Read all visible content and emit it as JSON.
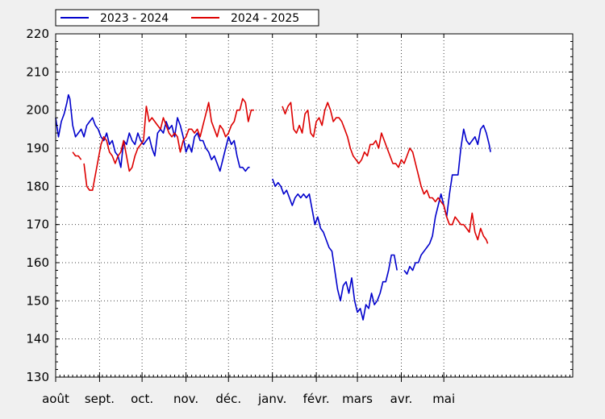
{
  "chart_data": {
    "type": "line",
    "title": "",
    "xlabel": "",
    "ylabel": "",
    "ylim": [
      130,
      220
    ],
    "yticks": [
      130,
      140,
      150,
      160,
      170,
      180,
      190,
      200,
      210,
      220
    ],
    "x_range": [
      0,
      365
    ],
    "month_ticks": [
      {
        "label": "août",
        "day": 0
      },
      {
        "label": "sept.",
        "day": 31
      },
      {
        "label": "oct.",
        "day": 61
      },
      {
        "label": "nov.",
        "day": 92
      },
      {
        "label": "déc.",
        "day": 122
      },
      {
        "label": "janv.",
        "day": 153
      },
      {
        "label": "févr.",
        "day": 184
      },
      {
        "label": "mars",
        "day": 213
      },
      {
        "label": "avr.",
        "day": 244
      },
      {
        "label": "mai",
        "day": 274
      }
    ],
    "grid": true,
    "legend_position": "top-left",
    "series": [
      {
        "name": "2023 - 2024",
        "color": "#0000cc",
        "points": [
          [
            0,
            198
          ],
          [
            2,
            193
          ],
          [
            4,
            197
          ],
          [
            6,
            199
          ],
          [
            8,
            202
          ],
          [
            9,
            204
          ],
          [
            10,
            203
          ],
          [
            12,
            196
          ],
          [
            14,
            193
          ],
          [
            16,
            194
          ],
          [
            18,
            195
          ],
          [
            20,
            193
          ],
          [
            22,
            196
          ],
          [
            24,
            197
          ],
          [
            26,
            198
          ],
          [
            28,
            196
          ],
          [
            30,
            195
          ],
          [
            32,
            193
          ],
          [
            34,
            192
          ],
          [
            36,
            194
          ],
          [
            38,
            191
          ],
          [
            40,
            192
          ],
          [
            42,
            189
          ],
          [
            44,
            188
          ],
          [
            46,
            185
          ],
          [
            48,
            192
          ],
          [
            50,
            191
          ],
          [
            52,
            194
          ],
          [
            54,
            192
          ],
          [
            56,
            191
          ],
          [
            58,
            194
          ],
          [
            60,
            192
          ],
          [
            62,
            191
          ],
          [
            64,
            192
          ],
          [
            66,
            193
          ],
          [
            68,
            190
          ],
          [
            70,
            188
          ],
          [
            72,
            194
          ],
          [
            74,
            195
          ],
          [
            76,
            194
          ],
          [
            78,
            197
          ],
          [
            80,
            195
          ],
          [
            82,
            196
          ],
          [
            84,
            193
          ],
          [
            86,
            198
          ],
          [
            88,
            196
          ],
          [
            90,
            193
          ],
          [
            92,
            189
          ],
          [
            94,
            191
          ],
          [
            96,
            189
          ],
          [
            98,
            193
          ],
          [
            100,
            194
          ],
          [
            102,
            192
          ],
          [
            104,
            192
          ],
          [
            106,
            190
          ],
          [
            108,
            189
          ],
          [
            110,
            187
          ],
          [
            112,
            188
          ],
          [
            114,
            186
          ],
          [
            116,
            184
          ],
          [
            118,
            187
          ],
          [
            120,
            190
          ],
          [
            122,
            193
          ],
          [
            124,
            191
          ],
          [
            126,
            192
          ],
          [
            128,
            188
          ],
          [
            130,
            185
          ],
          [
            132,
            185
          ],
          [
            134,
            184
          ],
          [
            136,
            185
          ],
          [
            137,
            185
          ],
          null,
          [
            153,
            182
          ],
          [
            155,
            180
          ],
          [
            157,
            181
          ],
          [
            159,
            180
          ],
          [
            161,
            178
          ],
          [
            163,
            179
          ],
          [
            165,
            177
          ],
          [
            167,
            175
          ],
          [
            169,
            177
          ],
          [
            171,
            178
          ],
          [
            173,
            177
          ],
          [
            175,
            178
          ],
          [
            177,
            177
          ],
          [
            179,
            178
          ],
          [
            181,
            174
          ],
          [
            183,
            170
          ],
          [
            185,
            172
          ],
          [
            187,
            169
          ],
          [
            189,
            168
          ],
          [
            191,
            166
          ],
          [
            193,
            164
          ],
          [
            195,
            163
          ],
          [
            197,
            158
          ],
          [
            199,
            153
          ],
          [
            201,
            150
          ],
          [
            203,
            154
          ],
          [
            205,
            155
          ],
          [
            207,
            152
          ],
          [
            209,
            156
          ],
          [
            211,
            150
          ],
          [
            213,
            147
          ],
          [
            215,
            148
          ],
          [
            217,
            145
          ],
          [
            219,
            149
          ],
          [
            221,
            148
          ],
          [
            223,
            152
          ],
          [
            225,
            149
          ],
          [
            227,
            150
          ],
          [
            229,
            152
          ],
          [
            231,
            155
          ],
          [
            233,
            155
          ],
          [
            235,
            158
          ],
          [
            237,
            162
          ],
          [
            239,
            162
          ],
          [
            241,
            158
          ],
          null,
          [
            246,
            158
          ],
          [
            248,
            157
          ],
          [
            250,
            159
          ],
          [
            252,
            158
          ],
          [
            254,
            160
          ],
          [
            256,
            160
          ],
          [
            258,
            162
          ],
          [
            260,
            163
          ],
          [
            262,
            164
          ],
          [
            264,
            165
          ],
          [
            266,
            167
          ],
          [
            268,
            172
          ],
          [
            270,
            175
          ],
          [
            272,
            178
          ],
          [
            274,
            175
          ],
          [
            276,
            172
          ],
          [
            278,
            178
          ],
          [
            280,
            183
          ],
          [
            282,
            183
          ],
          [
            284,
            183
          ],
          [
            286,
            190
          ],
          [
            288,
            195
          ],
          [
            290,
            192
          ],
          [
            292,
            191
          ],
          [
            294,
            192
          ],
          [
            296,
            193
          ],
          [
            298,
            191
          ],
          [
            300,
            195
          ],
          [
            302,
            196
          ],
          [
            304,
            194
          ],
          [
            306,
            191
          ],
          [
            307,
            189
          ]
        ]
      },
      {
        "name": "2024 - 2025",
        "color": "#dd0000",
        "points": [
          [
            12,
            189
          ],
          [
            14,
            188
          ],
          [
            16,
            188
          ],
          [
            18,
            187
          ],
          null,
          [
            20,
            186
          ],
          [
            22,
            180
          ],
          [
            24,
            179
          ],
          [
            26,
            179
          ],
          [
            28,
            183
          ],
          [
            30,
            187
          ],
          [
            32,
            191
          ],
          [
            34,
            193
          ],
          [
            36,
            192
          ],
          [
            38,
            189
          ],
          [
            40,
            188
          ],
          [
            42,
            186
          ],
          [
            44,
            188
          ],
          [
            46,
            189
          ],
          [
            48,
            192
          ],
          [
            50,
            188
          ],
          [
            52,
            184
          ],
          [
            54,
            185
          ],
          [
            56,
            188
          ],
          [
            58,
            190
          ],
          [
            60,
            191
          ],
          [
            62,
            192
          ],
          [
            64,
            201
          ],
          [
            66,
            197
          ],
          [
            68,
            198
          ],
          [
            70,
            197
          ],
          [
            72,
            196
          ],
          [
            74,
            195
          ],
          [
            76,
            198
          ],
          [
            78,
            196
          ],
          [
            80,
            194
          ],
          [
            82,
            193
          ],
          [
            84,
            194
          ],
          [
            86,
            193
          ],
          [
            88,
            189
          ],
          [
            90,
            192
          ],
          [
            92,
            193
          ],
          [
            94,
            195
          ],
          [
            96,
            195
          ],
          [
            98,
            194
          ],
          [
            100,
            195
          ],
          [
            102,
            193
          ],
          [
            104,
            196
          ],
          [
            106,
            199
          ],
          [
            108,
            202
          ],
          [
            110,
            197
          ],
          [
            112,
            195
          ],
          [
            114,
            193
          ],
          [
            116,
            196
          ],
          [
            118,
            195
          ],
          [
            120,
            193
          ],
          [
            122,
            194
          ],
          [
            124,
            196
          ],
          [
            126,
            197
          ],
          [
            128,
            200
          ],
          [
            130,
            200
          ],
          [
            132,
            203
          ],
          [
            134,
            202
          ],
          [
            136,
            197
          ],
          [
            138,
            200
          ],
          [
            140,
            200
          ],
          null,
          [
            160,
            201
          ],
          [
            162,
            199
          ],
          [
            164,
            201
          ],
          [
            166,
            202
          ],
          [
            168,
            195
          ],
          [
            170,
            194
          ],
          [
            172,
            196
          ],
          [
            174,
            194
          ],
          [
            176,
            199
          ],
          [
            178,
            200
          ],
          [
            180,
            194
          ],
          [
            182,
            193
          ],
          [
            184,
            197
          ],
          [
            186,
            198
          ],
          [
            188,
            196
          ],
          [
            190,
            200
          ],
          [
            192,
            202
          ],
          [
            194,
            200
          ],
          [
            196,
            197
          ],
          [
            198,
            198
          ],
          [
            200,
            198
          ],
          [
            202,
            197
          ],
          [
            204,
            195
          ],
          [
            206,
            193
          ],
          [
            208,
            190
          ],
          [
            210,
            188
          ],
          [
            212,
            187
          ],
          [
            214,
            186
          ],
          [
            216,
            187
          ],
          [
            218,
            189
          ],
          [
            220,
            188
          ],
          [
            222,
            191
          ],
          [
            224,
            191
          ],
          [
            226,
            192
          ],
          [
            228,
            190
          ],
          [
            230,
            194
          ],
          [
            232,
            192
          ],
          [
            234,
            190
          ],
          [
            236,
            188
          ],
          [
            238,
            186
          ],
          [
            240,
            186
          ],
          [
            242,
            185
          ],
          [
            244,
            187
          ],
          [
            246,
            186
          ],
          [
            248,
            188
          ],
          [
            250,
            190
          ],
          [
            252,
            189
          ],
          [
            254,
            186
          ],
          [
            256,
            183
          ],
          [
            258,
            180
          ],
          [
            260,
            178
          ],
          [
            262,
            179
          ],
          [
            264,
            177
          ],
          [
            266,
            177
          ],
          [
            268,
            176
          ],
          [
            270,
            177
          ],
          [
            272,
            176
          ],
          [
            274,
            175
          ],
          [
            276,
            172
          ],
          [
            278,
            170
          ],
          [
            280,
            170
          ],
          [
            282,
            172
          ],
          [
            284,
            171
          ],
          [
            286,
            170
          ],
          [
            288,
            170
          ],
          [
            290,
            169
          ],
          [
            292,
            168
          ],
          [
            294,
            173
          ],
          [
            296,
            168
          ],
          [
            298,
            166
          ],
          [
            300,
            169
          ],
          [
            302,
            167
          ],
          [
            304,
            166
          ],
          [
            305,
            165
          ]
        ]
      }
    ]
  }
}
